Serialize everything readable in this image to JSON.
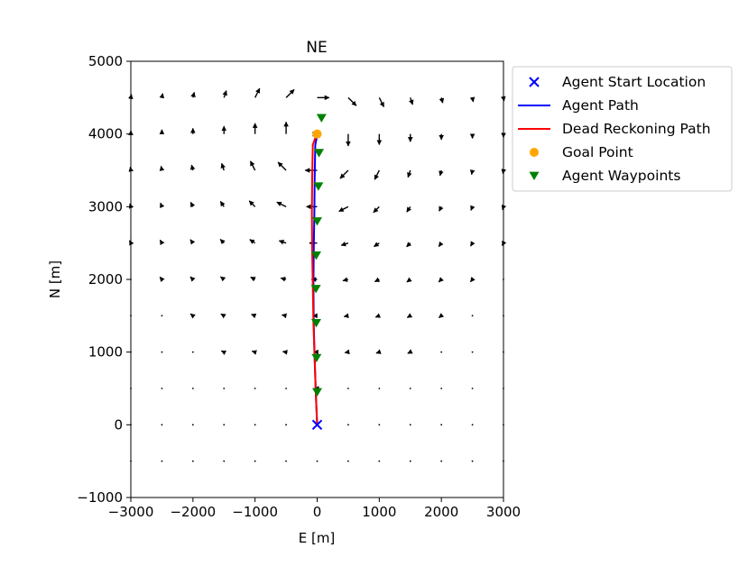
{
  "chart_data": {
    "type": "quiver",
    "title": "NE",
    "xlabel": "E [m]",
    "ylabel": "N [m]",
    "xlim": [
      -3000,
      3000
    ],
    "ylim": [
      -1000,
      5000
    ],
    "xticks": [
      -3000,
      -2000,
      -1000,
      0,
      1000,
      2000,
      3000
    ],
    "yticks": [
      -1000,
      0,
      1000,
      2000,
      3000,
      4000,
      5000
    ],
    "xtick_labels": [
      "−3000",
      "−2000",
      "−1000",
      "0",
      "1000",
      "2000",
      "3000"
    ],
    "ytick_labels": [
      "−1000",
      "0",
      "1000",
      "2000",
      "3000",
      "4000",
      "5000"
    ],
    "grid": false,
    "legend_position": "outside-right-top",
    "vortex_field": {
      "center": [
        0,
        4000
      ],
      "x_grid": [
        -3000,
        -2500,
        -2000,
        -1500,
        -1000,
        -500,
        0,
        500,
        1000,
        1500,
        2000,
        2500,
        3000
      ],
      "y_grid": [
        -500,
        0,
        500,
        1000,
        1500,
        2000,
        2500,
        3000,
        3500,
        4000,
        4500
      ]
    },
    "series": [
      {
        "name": "Agent Start Location",
        "kind": "marker-x",
        "color": "#0000ff",
        "points": [
          [
            0,
            0
          ]
        ]
      },
      {
        "name": "Agent Path",
        "kind": "line",
        "color": "#0000ff",
        "points": [
          [
            0,
            0
          ],
          [
            -20,
            400
          ],
          [
            -40,
            900
          ],
          [
            -55,
            1400
          ],
          [
            -60,
            1900
          ],
          [
            -55,
            2400
          ],
          [
            -45,
            2900
          ],
          [
            -40,
            3400
          ],
          [
            -30,
            3850
          ],
          [
            0,
            3980
          ]
        ]
      },
      {
        "name": "Dead Reckoning Path",
        "kind": "line",
        "color": "#ff0000",
        "points": [
          [
            0,
            0
          ],
          [
            -20,
            400
          ],
          [
            -40,
            900
          ],
          [
            -60,
            1400
          ],
          [
            -70,
            1900
          ],
          [
            -80,
            2400
          ],
          [
            -85,
            2900
          ],
          [
            -80,
            3400
          ],
          [
            -70,
            3850
          ],
          [
            -20,
            3970
          ]
        ]
      },
      {
        "name": "Goal Point",
        "kind": "marker-dot",
        "color": "#ffa500",
        "points": [
          [
            0,
            4000
          ]
        ]
      },
      {
        "name": "Agent Waypoints",
        "kind": "marker-triangle-down",
        "color": "#008000",
        "points": [
          [
            0,
            450
          ],
          [
            -10,
            920
          ],
          [
            -15,
            1400
          ],
          [
            -20,
            1870
          ],
          [
            -15,
            2330
          ],
          [
            0,
            2800
          ],
          [
            20,
            3280
          ],
          [
            30,
            3740
          ],
          [
            70,
            4220
          ]
        ]
      }
    ]
  }
}
